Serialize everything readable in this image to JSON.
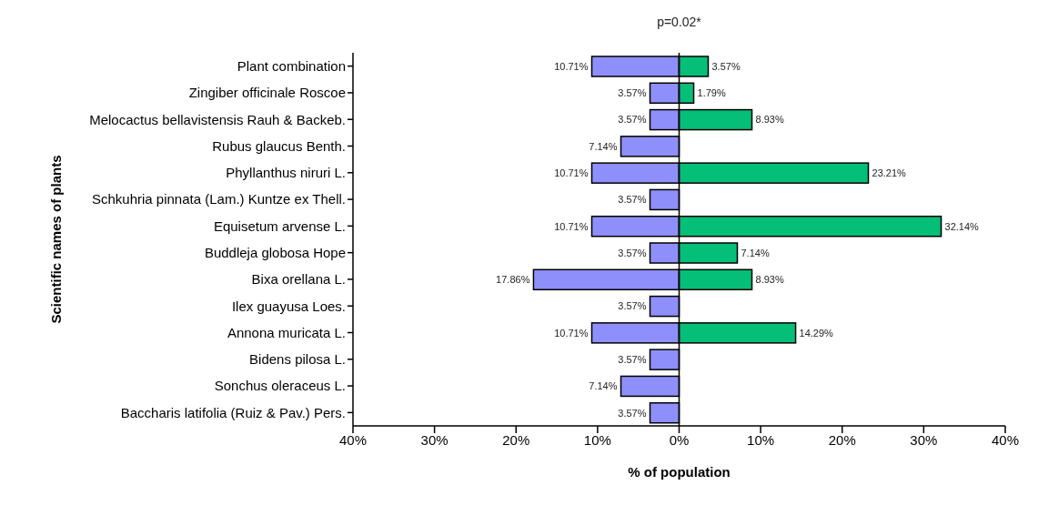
{
  "chart_data": {
    "type": "bar",
    "orientation": "horizontal",
    "xlabel": "% of population",
    "ylabel": "Scientific names of plants",
    "annotations": [
      "p=0.02*"
    ],
    "categories": [
      "Plant combination",
      "Zingiber officinale Roscoe",
      "Melocactus bellavistensis Rauh & Backeb.",
      "Rubus glaucus Benth.",
      "Phyllanthus niruri L.",
      "Schkuhria pinnata (Lam.) Kuntze ex Thell.",
      "Equisetum arvense L.",
      "Buddleja globosa Hope",
      "Bixa orellana L.",
      "Ilex guayusa Loes.",
      "Annona muricata L.",
      "Bidens pilosa L.",
      "Sonchus oleraceus L.",
      "Baccharis latifolia (Ruiz & Pav.) Pers."
    ],
    "series": [
      {
        "color": "#8f8ffb",
        "values": [
          10.71,
          3.57,
          3.57,
          7.14,
          10.71,
          3.57,
          10.71,
          3.57,
          17.86,
          3.57,
          10.71,
          3.57,
          7.14,
          3.57
        ],
        "base": [
          -10.71,
          -3.57,
          -3.57,
          -7.14,
          -10.71,
          -3.57,
          -10.71,
          -3.57,
          -17.86,
          -3.57,
          -10.71,
          -3.57,
          -7.14,
          -3.57
        ],
        "value_labels": [
          "10.71%",
          "3.57%",
          "3.57%",
          "7.14%",
          "10.71%",
          "3.57%",
          "10.71%",
          "3.57%",
          "17.86%",
          "3.57%",
          "10.71%",
          "3.57%",
          "7.14%",
          "3.57%"
        ]
      },
      {
        "color": "#05be78",
        "values": [
          3.57,
          1.79,
          8.93,
          null,
          23.21,
          null,
          32.14,
          7.14,
          8.93,
          null,
          14.29,
          null,
          null,
          null
        ],
        "value_labels": [
          "3.57%",
          "1.79%",
          "8.93%",
          null,
          "23.21%",
          null,
          "32.14%",
          "7.14%",
          "8.93%",
          null,
          "14.29%",
          null,
          null,
          null
        ]
      }
    ],
    "xlim": [
      -40,
      40
    ],
    "xticks": [
      {
        "value": -40,
        "label": "40%"
      },
      {
        "value": -30,
        "label": "30%"
      },
      {
        "value": -20,
        "label": "20%"
      },
      {
        "value": -10,
        "label": "10%"
      },
      {
        "value": 0,
        "label": "0%"
      },
      {
        "value": 10,
        "label": "10%"
      },
      {
        "value": 20,
        "label": "20%"
      },
      {
        "value": 30,
        "label": "30%"
      },
      {
        "value": 40,
        "label": "40%"
      }
    ],
    "ref_lines": [
      {
        "axis": "x",
        "value": 0,
        "color": "#000000"
      }
    ],
    "grid": false,
    "legend": false
  }
}
